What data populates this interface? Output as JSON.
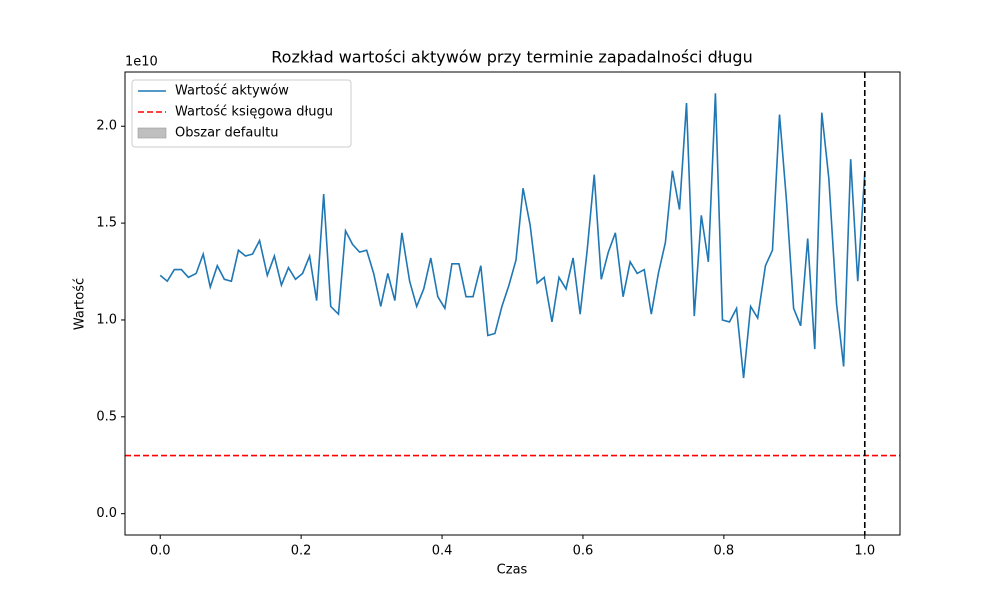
{
  "chart_data": {
    "type": "line",
    "title": "Rozkład wartości aktywów przy terminie zapadalności długu",
    "xlabel": "Czas",
    "ylabel": "Wartość",
    "y_offset_label": "1e10",
    "x": [
      0,
      0.01,
      0.02,
      0.03,
      0.04,
      0.051,
      0.061,
      0.071,
      0.081,
      0.091,
      0.101,
      0.111,
      0.121,
      0.131,
      0.141,
      0.152,
      0.162,
      0.172,
      0.182,
      0.192,
      0.202,
      0.212,
      0.222,
      0.232,
      0.242,
      0.253,
      0.263,
      0.273,
      0.283,
      0.293,
      0.303,
      0.313,
      0.323,
      0.333,
      0.343,
      0.354,
      0.364,
      0.374,
      0.384,
      0.394,
      0.404,
      0.414,
      0.424,
      0.434,
      0.444,
      0.455,
      0.465,
      0.475,
      0.485,
      0.495,
      0.505,
      0.515,
      0.525,
      0.535,
      0.545,
      0.556,
      0.566,
      0.576,
      0.586,
      0.596,
      0.606,
      0.616,
      0.626,
      0.636,
      0.646,
      0.657,
      0.667,
      0.677,
      0.687,
      0.697,
      0.707,
      0.717,
      0.727,
      0.737,
      0.747,
      0.758,
      0.768,
      0.778,
      0.788,
      0.798,
      0.808,
      0.818,
      0.828,
      0.838,
      0.848,
      0.859,
      0.869,
      0.879,
      0.889,
      0.899,
      0.909,
      0.919,
      0.929,
      0.939,
      0.949,
      0.96,
      0.97,
      0.98,
      0.99,
      1
    ],
    "series": [
      {
        "name": "Wartość aktywów",
        "color": "#1f77b4",
        "values": [
          1.23,
          1.2,
          1.26,
          1.26,
          1.22,
          1.24,
          1.34,
          1.17,
          1.28,
          1.21,
          1.2,
          1.36,
          1.33,
          1.34,
          1.41,
          1.23,
          1.33,
          1.18,
          1.27,
          1.21,
          1.24,
          1.33,
          1.1,
          1.65,
          1.07,
          1.03,
          1.46,
          1.39,
          1.35,
          1.36,
          1.24,
          1.07,
          1.24,
          1.1,
          1.45,
          1.2,
          1.07,
          1.16,
          1.32,
          1.12,
          1.06,
          1.29,
          1.29,
          1.12,
          1.12,
          1.28,
          0.92,
          0.93,
          1.07,
          1.18,
          1.31,
          1.68,
          1.49,
          1.19,
          1.22,
          0.99,
          1.22,
          1.16,
          1.32,
          1.03,
          1.36,
          1.75,
          1.21,
          1.35,
          1.45,
          1.12,
          1.3,
          1.24,
          1.26,
          1.03,
          1.24,
          1.4,
          1.77,
          1.57,
          2.12,
          1.02,
          1.54,
          1.3,
          2.17,
          1.0,
          0.99,
          1.06,
          0.7,
          1.07,
          1.01,
          1.28,
          1.36,
          2.06,
          1.61,
          1.06,
          0.97,
          1.42,
          0.85,
          2.07,
          1.73,
          1.08,
          0.76,
          1.83,
          1.2,
          1.76
        ]
      }
    ],
    "hline": {
      "name": "Wartość księgowa długu",
      "value": 0.3,
      "color": "#ff0000"
    },
    "vline": {
      "value": 1,
      "color": "#000000"
    },
    "area": {
      "name": "Obszar defaultu",
      "color": "#bfbfbf"
    },
    "xlim": [
      -0.05,
      1.05
    ],
    "ylim": [
      -0.11,
      2.28
    ],
    "xticks": [
      {
        "value": 0,
        "label": "0.0"
      },
      0.2,
      0.4,
      0.6,
      0.8,
      {
        "value": 1,
        "label": "1.0"
      }
    ],
    "yticks": [
      {
        "value": 0,
        "label": "0.0"
      },
      0.5,
      {
        "value": 1,
        "label": "1.0"
      },
      1.5,
      {
        "value": 2,
        "label": "2.0"
      }
    ],
    "legend": "upper left"
  }
}
